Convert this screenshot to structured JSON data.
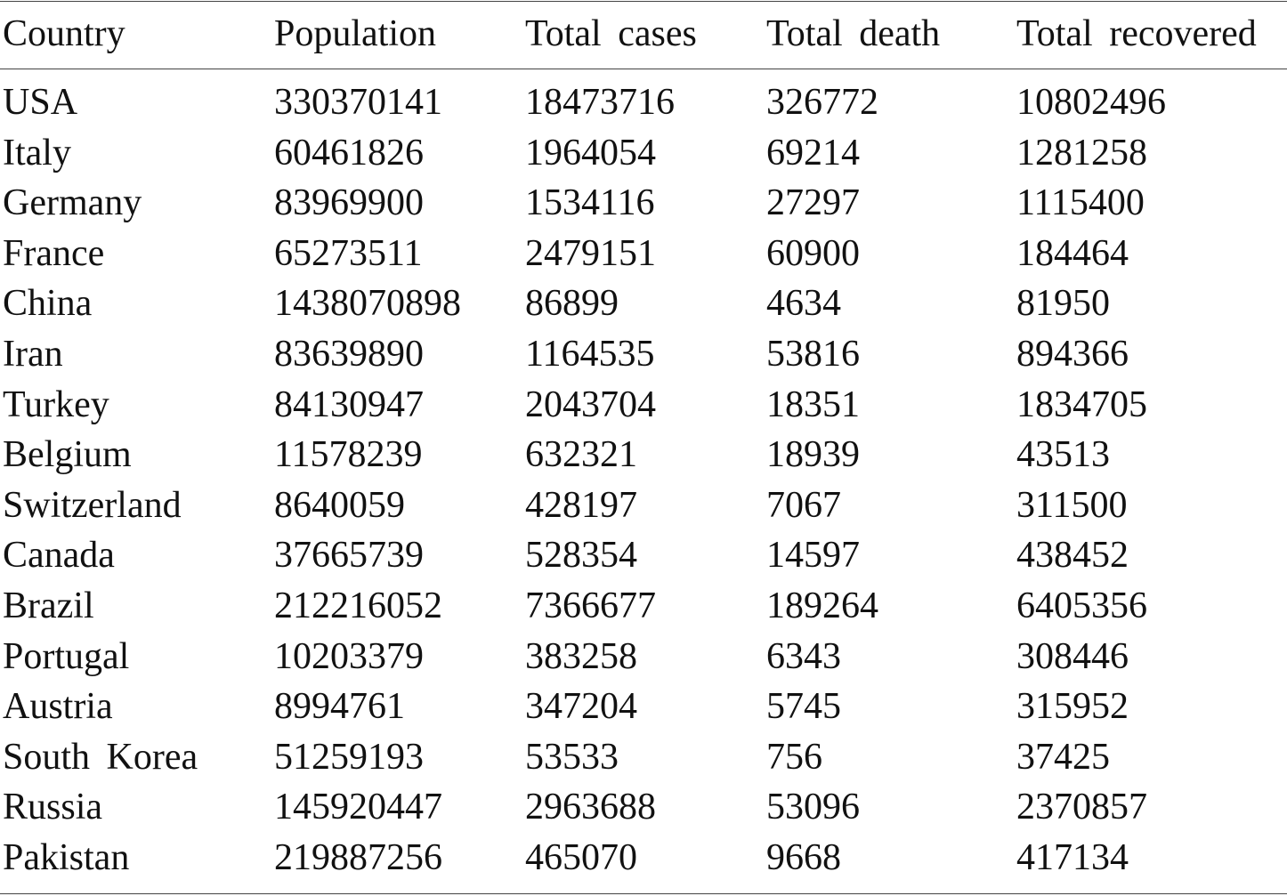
{
  "table": {
    "columns": [
      "Country",
      "Population",
      "Total cases",
      "Total death",
      "Total recovered"
    ],
    "rows": [
      [
        "USA",
        "330370141",
        "18473716",
        "326772",
        "10802496"
      ],
      [
        "Italy",
        "60461826",
        "1964054",
        "69214",
        "1281258"
      ],
      [
        "Germany",
        "83969900",
        "1534116",
        "27297",
        "1115400"
      ],
      [
        "France",
        "65273511",
        "2479151",
        "60900",
        "184464"
      ],
      [
        "China",
        "1438070898",
        "86899",
        "4634",
        "81950"
      ],
      [
        "Iran",
        "83639890",
        "1164535",
        "53816",
        "894366"
      ],
      [
        "Turkey",
        "84130947",
        "2043704",
        "18351",
        "1834705"
      ],
      [
        "Belgium",
        "11578239",
        "632321",
        "18939",
        "43513"
      ],
      [
        "Switzerland",
        "8640059",
        "428197",
        "7067",
        "311500"
      ],
      [
        "Canada",
        "37665739",
        "528354",
        "14597",
        "438452"
      ],
      [
        "Brazil",
        "212216052",
        "7366677",
        "189264",
        "6405356"
      ],
      [
        "Portugal",
        "10203379",
        "383258",
        "6343",
        "308446"
      ],
      [
        "Austria",
        "8994761",
        "347204",
        "5745",
        "315952"
      ],
      [
        "South Korea",
        "51259193",
        "53533",
        "756",
        "37425"
      ],
      [
        "Russia",
        "145920447",
        "2963688",
        "53096",
        "2370857"
      ],
      [
        "Pakistan",
        "219887256",
        "465070",
        "9668",
        "417134"
      ]
    ]
  }
}
